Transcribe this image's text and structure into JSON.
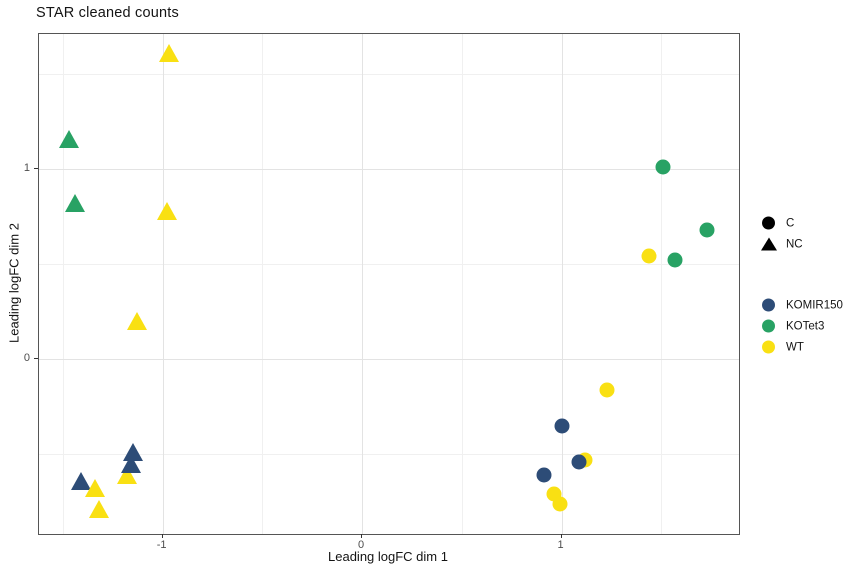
{
  "chart_data": {
    "type": "scatter",
    "title": "STAR cleaned counts",
    "xlabel": "Leading logFC dim 1",
    "ylabel": "Leading logFC dim 2",
    "xlim": [
      -1.62,
      1.89
    ],
    "ylim": [
      -0.92,
      1.71
    ],
    "grid": true,
    "legend_position": "right",
    "x_ticks": [
      {
        "value": -1,
        "label": "-1"
      },
      {
        "value": 0,
        "label": "0"
      },
      {
        "value": 1,
        "label": "1"
      }
    ],
    "y_ticks": [
      {
        "value": 0,
        "label": "0"
      },
      {
        "value": 1,
        "label": "1"
      }
    ],
    "x_minor": [
      -1.5,
      -0.5,
      0.5,
      1.5
    ],
    "y_minor": [
      -0.5,
      0.5,
      1.5
    ],
    "shape_legend": [
      {
        "label": "C",
        "shape": "circle"
      },
      {
        "label": "NC",
        "shape": "triangle"
      }
    ],
    "shape_legend_symbol_color": "#000000",
    "color_legend": [
      {
        "label": "KOMIR150",
        "color": "#2D4C77"
      },
      {
        "label": "KOTet3",
        "color": "#28A264"
      },
      {
        "label": "WT",
        "color": "#F9E013"
      }
    ],
    "group_colors": {
      "KOMIR150": "#2D4C77",
      "KOTet3": "#28A264",
      "WT": "#F9E013"
    },
    "points": [
      {
        "group": "KOTet3",
        "shape": "triangle",
        "x": -1.47,
        "y": 1.16
      },
      {
        "group": "KOTet3",
        "shape": "triangle",
        "x": -1.44,
        "y": 0.82
      },
      {
        "group": "KOTet3",
        "shape": "circle",
        "x": 1.51,
        "y": 1.01
      },
      {
        "group": "KOTet3",
        "shape": "circle",
        "x": 1.73,
        "y": 0.68
      },
      {
        "group": "KOTet3",
        "shape": "circle",
        "x": 1.57,
        "y": 0.52
      },
      {
        "group": "WT",
        "shape": "triangle",
        "x": -0.97,
        "y": 1.61
      },
      {
        "group": "WT",
        "shape": "triangle",
        "x": -0.98,
        "y": 0.78
      },
      {
        "group": "WT",
        "shape": "triangle",
        "x": -1.13,
        "y": 0.2
      },
      {
        "group": "WT",
        "shape": "circle",
        "x": 1.44,
        "y": 0.54
      },
      {
        "group": "WT",
        "shape": "circle",
        "x": 1.23,
        "y": -0.16
      },
      {
        "group": "WT",
        "shape": "circle",
        "x": 1.12,
        "y": -0.53
      },
      {
        "group": "WT",
        "shape": "circle",
        "x": 0.96,
        "y": -0.71
      },
      {
        "group": "WT",
        "shape": "circle",
        "x": 0.99,
        "y": -0.76
      },
      {
        "group": "WT",
        "shape": "triangle",
        "x": -1.18,
        "y": -0.61
      },
      {
        "group": "KOMIR150",
        "shape": "triangle",
        "x": -1.16,
        "y": -0.55
      },
      {
        "group": "KOMIR150",
        "shape": "triangle",
        "x": -1.15,
        "y": -0.49
      },
      {
        "group": "KOMIR150",
        "shape": "triangle",
        "x": -1.41,
        "y": -0.64
      },
      {
        "group": "WT",
        "shape": "triangle",
        "x": -1.34,
        "y": -0.68
      },
      {
        "group": "WT",
        "shape": "triangle",
        "x": -1.32,
        "y": -0.79
      },
      {
        "group": "KOMIR150",
        "shape": "circle",
        "x": 1.0,
        "y": -0.35
      },
      {
        "group": "KOMIR150",
        "shape": "circle",
        "x": 1.09,
        "y": -0.54
      },
      {
        "group": "KOMIR150",
        "shape": "circle",
        "x": 0.91,
        "y": -0.61
      }
    ]
  }
}
